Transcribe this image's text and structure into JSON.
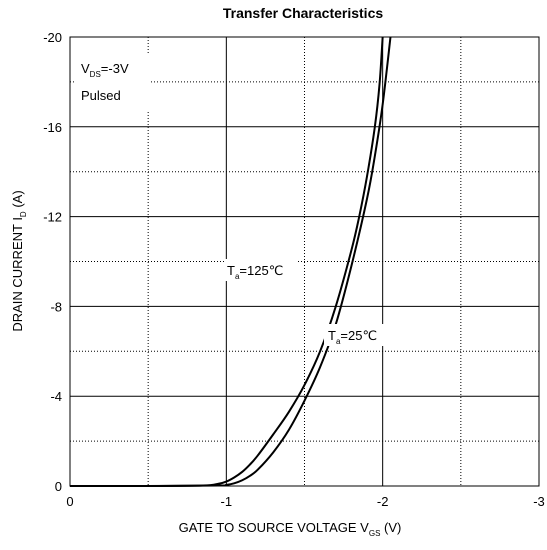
{
  "chart_data": {
    "type": "line",
    "title": "Transfer Characteristics",
    "xlabel": "GATE TO SOURCE VOLTAGE V_GS (V)",
    "ylabel": "DRAIN CURRENT I_D (A)",
    "xlim": [
      0,
      -3
    ],
    "ylim": [
      0,
      -20
    ],
    "x_ticks": [
      0,
      -1,
      -2,
      -3
    ],
    "x_tick_labels": [
      "0",
      "-1",
      "-2",
      "-3"
    ],
    "y_ticks": [
      0,
      -4,
      -8,
      -12,
      -16,
      -20
    ],
    "y_tick_labels": [
      "0",
      "-4",
      "-8",
      "-12",
      "-16",
      "-20"
    ],
    "grid": "major solid, minor dotted",
    "annotations": {
      "condition": {
        "line1": {
          "main": "V",
          "sub": "DS",
          "rest": "=-3V"
        },
        "line2": "Pulsed"
      },
      "t125_label": {
        "main": "T",
        "sub": "a",
        "rest": "=125℃"
      },
      "t25_label": {
        "main": "T",
        "sub": "a",
        "rest": "=25℃"
      }
    },
    "series": [
      {
        "label": "Ta=125℃",
        "points": [
          [
            0,
            0
          ],
          [
            -0.5,
            0
          ],
          [
            -0.85,
            -0.02
          ],
          [
            -0.95,
            -0.1
          ],
          [
            -1.0,
            -0.2
          ],
          [
            -1.05,
            -0.38
          ],
          [
            -1.1,
            -0.62
          ],
          [
            -1.15,
            -0.95
          ],
          [
            -1.2,
            -1.35
          ],
          [
            -1.3,
            -2.3
          ],
          [
            -1.4,
            -3.3
          ],
          [
            -1.5,
            -4.5
          ],
          [
            -1.6,
            -6.0
          ],
          [
            -1.7,
            -8.0
          ],
          [
            -1.8,
            -10.5
          ],
          [
            -1.85,
            -12.0
          ],
          [
            -1.9,
            -13.8
          ],
          [
            -1.95,
            -16.0
          ],
          [
            -1.98,
            -17.9
          ],
          [
            -2.0,
            -20.0
          ]
        ]
      },
      {
        "label": "Ta=25℃",
        "points": [
          [
            0,
            0
          ],
          [
            -0.5,
            0
          ],
          [
            -0.95,
            -0.02
          ],
          [
            -1.0,
            -0.05
          ],
          [
            -1.05,
            -0.12
          ],
          [
            -1.1,
            -0.25
          ],
          [
            -1.15,
            -0.45
          ],
          [
            -1.2,
            -0.72
          ],
          [
            -1.3,
            -1.5
          ],
          [
            -1.4,
            -2.5
          ],
          [
            -1.5,
            -3.8
          ],
          [
            -1.6,
            -5.3
          ],
          [
            -1.7,
            -7.2
          ],
          [
            -1.8,
            -9.8
          ],
          [
            -1.9,
            -12.8
          ],
          [
            -1.95,
            -14.7
          ],
          [
            -2.0,
            -17.0
          ],
          [
            -2.05,
            -20.0
          ]
        ]
      }
    ]
  }
}
